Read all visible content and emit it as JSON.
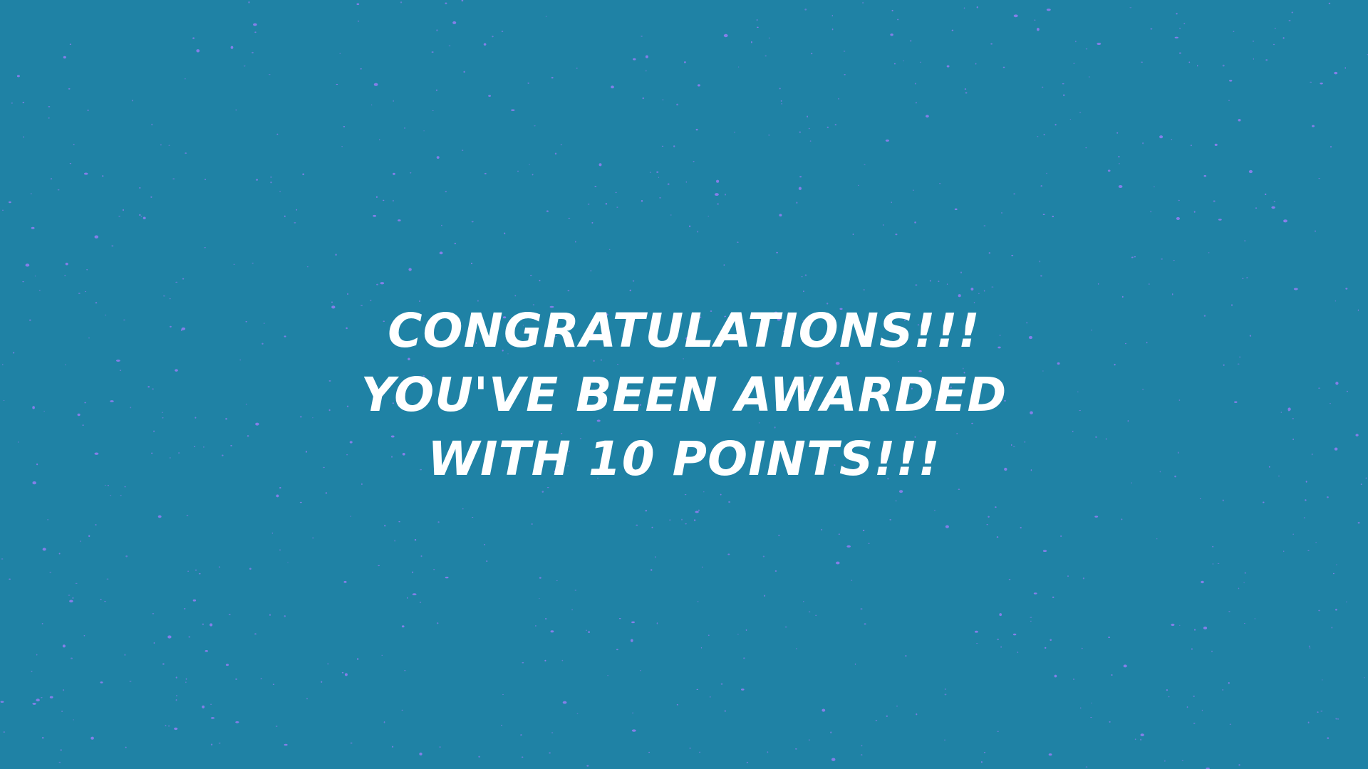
{
  "background": {
    "color": "#1f82a5",
    "speckle_color": "#8f7ef0"
  },
  "message": {
    "line1": "CONGRATULATIONS!!!",
    "line2": "YOU'VE BEEN AWARDED",
    "line3": "WITH 10 POINTS!!!"
  }
}
